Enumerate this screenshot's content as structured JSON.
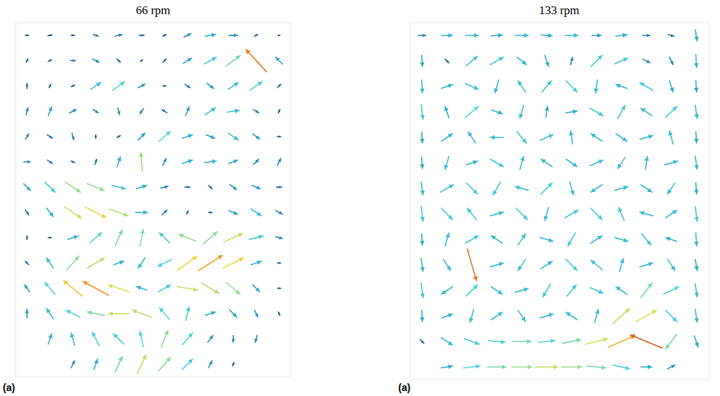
{
  "chart_data": [
    {
      "type": "quiver",
      "title": "66 rpm",
      "panel_label": "(a)",
      "tick_labels": false,
      "grid": false,
      "x": [
        0,
        1,
        2,
        3,
        4,
        5,
        6,
        7,
        8,
        9,
        10,
        11
      ],
      "y": [
        0,
        1,
        2,
        3,
        4,
        5,
        6,
        7,
        8,
        9,
        10,
        11,
        12,
        13
      ],
      "xlim": [
        -0.5,
        11.5
      ],
      "ylim": [
        -0.5,
        13.5
      ],
      "color_range": [
        0,
        1
      ],
      "u": [
        [
          0.1,
          0.12,
          0.1,
          0.15,
          0.2,
          0.15,
          0.1,
          0.2,
          0.3,
          0.25,
          0.1,
          0.05
        ],
        [
          0.05,
          0.1,
          0.15,
          0.2,
          0.1,
          0.05,
          0.1,
          0.25,
          0.35,
          0.4,
          -0.6,
          -0.2
        ],
        [
          0,
          0.05,
          0.1,
          0.3,
          0.35,
          0.2,
          0.1,
          0.15,
          0.2,
          0.3,
          0.35,
          0.1
        ],
        [
          0.05,
          0.1,
          0.2,
          0.15,
          0.05,
          -0.1,
          -0.15,
          0.1,
          0.3,
          0.35,
          0.15,
          0.05
        ],
        [
          0.1,
          0.15,
          0.05,
          0,
          0.1,
          0.2,
          0.35,
          0.3,
          0.25,
          0.3,
          0.2,
          0.1
        ],
        [
          0.2,
          0.15,
          0.1,
          0.05,
          0.1,
          -0.05,
          0.1,
          0.3,
          0.35,
          0.25,
          0.15,
          0.1
        ],
        [
          0.2,
          0.3,
          0.45,
          0.5,
          0.4,
          0.3,
          0.2,
          0.15,
          0.1,
          0.2,
          0.25,
          0.15
        ],
        [
          0.1,
          0.2,
          0.5,
          0.6,
          0.55,
          0.35,
          0.15,
          0.05,
          0.1,
          0.25,
          0.3,
          0.2
        ],
        [
          0,
          0.1,
          0.3,
          0.35,
          0.2,
          0.1,
          -0.3,
          -0.5,
          0.4,
          0.55,
          0.4,
          0.2
        ],
        [
          -0.1,
          -0.2,
          0.35,
          0.5,
          0.3,
          -0.2,
          -0.4,
          0.55,
          0.7,
          0.6,
          0.3,
          0.1
        ],
        [
          -0.15,
          -0.3,
          -0.55,
          -0.75,
          -0.6,
          -0.3,
          0.35,
          0.6,
          0.5,
          0.4,
          0.2,
          0.1
        ],
        [
          0,
          -0.2,
          -0.4,
          -0.5,
          -0.6,
          -0.55,
          -0.3,
          0.1,
          0.3,
          0.2,
          0.1,
          0.05
        ],
        [
          null,
          0.1,
          -0.1,
          -0.2,
          -0.3,
          -0.1,
          0.2,
          0.3,
          0.15,
          0,
          -0.05,
          null
        ],
        [
          null,
          null,
          0.1,
          0.1,
          0.2,
          0.25,
          0.35,
          0.3,
          0.1,
          0.05,
          null,
          null
        ]
      ],
      "v": [
        [
          0,
          0.02,
          0,
          -0.05,
          0.05,
          0,
          0.05,
          0.1,
          0.05,
          0,
          0.05,
          0
        ],
        [
          0.1,
          0.05,
          0,
          -0.1,
          -0.1,
          0.05,
          0.1,
          0.15,
          0.2,
          0.3,
          0.65,
          0.2
        ],
        [
          0.15,
          0.1,
          0.05,
          0.2,
          0.25,
          0.1,
          0,
          -0.1,
          -0.15,
          0.2,
          0.25,
          0.1
        ],
        [
          0.2,
          0.25,
          0.1,
          -0.1,
          -0.2,
          -0.15,
          0.1,
          0.25,
          0.2,
          0.05,
          -0.1,
          0.1
        ],
        [
          0.15,
          -0.1,
          -0.2,
          -0.1,
          0.05,
          0.2,
          0.3,
          0.1,
          -0.1,
          -0.2,
          -0.15,
          0
        ],
        [
          0,
          -0.1,
          -0.05,
          0.15,
          0.3,
          0.55,
          0.2,
          0.1,
          0.05,
          0.1,
          0.15,
          0.2
        ],
        [
          -0.2,
          -0.3,
          -0.3,
          -0.2,
          -0.1,
          0.1,
          0.05,
          0,
          -0.1,
          -0.15,
          -0.1,
          0
        ],
        [
          -0.15,
          -0.25,
          -0.35,
          -0.3,
          -0.2,
          0,
          0.15,
          0.1,
          0,
          -0.1,
          -0.2,
          -0.1
        ],
        [
          -0.1,
          0,
          0.1,
          0.3,
          0.45,
          0.5,
          0.3,
          0.2,
          0.35,
          0.25,
          0.1,
          -0.05
        ],
        [
          0.1,
          0.3,
          0.4,
          0.3,
          0.1,
          -0.3,
          -0.2,
          0.4,
          0.45,
          0.3,
          0.1,
          0
        ],
        [
          0.2,
          0.35,
          0.45,
          0.4,
          0.2,
          0.1,
          0.2,
          -0.1,
          -0.3,
          -0.35,
          -0.2,
          0
        ],
        [
          0.25,
          0.3,
          0.2,
          0.1,
          0,
          0.2,
          0.35,
          0.4,
          0.1,
          -0.2,
          -0.2,
          -0.1
        ],
        [
          null,
          0.3,
          0.35,
          0.4,
          0.3,
          0.45,
          0.5,
          0.35,
          0.2,
          -0.2,
          -0.2,
          null
        ],
        [
          null,
          null,
          0.2,
          0.3,
          0.45,
          0.55,
          0.4,
          0.3,
          0.2,
          0.1,
          null,
          null
        ]
      ]
    },
    {
      "type": "quiver",
      "title": "133 rpm",
      "panel_label": "(a)",
      "tick_labels": false,
      "grid": false,
      "x": [
        0,
        1,
        2,
        3,
        4,
        5,
        6,
        7,
        8,
        9,
        10,
        11
      ],
      "y": [
        0,
        1,
        2,
        3,
        4,
        5,
        6,
        7,
        8,
        9,
        10,
        11,
        12,
        13
      ],
      "xlim": [
        -0.5,
        11.5
      ],
      "ylim": [
        -0.5,
        13.5
      ],
      "color_range": [
        0,
        1
      ],
      "u": [
        [
          0.2,
          0.3,
          0.35,
          0.3,
          0.35,
          0.3,
          0.35,
          0.25,
          0.3,
          0.2,
          0.15,
          0.05
        ],
        [
          0.02,
          0.1,
          0.3,
          0.35,
          0.25,
          0.1,
          0.05,
          0.3,
          0.35,
          0.2,
          0.1,
          0.02
        ],
        [
          0.02,
          0.3,
          0.35,
          -0.1,
          -0.2,
          0.25,
          0.3,
          -0.05,
          -0.3,
          -0.35,
          0.1,
          0.02
        ],
        [
          0.05,
          -0.1,
          0.35,
          0.3,
          -0.1,
          0.05,
          0.3,
          0.35,
          0.2,
          -0.3,
          0.3,
          0.05
        ],
        [
          0.02,
          0.3,
          -0.2,
          -0.35,
          0.25,
          0.35,
          -0.05,
          -0.3,
          0.3,
          0.35,
          -0.1,
          0.02
        ],
        [
          0.02,
          -0.1,
          0.3,
          0.35,
          0.1,
          -0.3,
          0.3,
          0.35,
          -0.2,
          0.05,
          0.35,
          0.05
        ],
        [
          0.05,
          0.35,
          0.3,
          -0.2,
          -0.35,
          0.3,
          0.1,
          -0.3,
          0.35,
          0.3,
          -0.2,
          0.02
        ],
        [
          0.05,
          0.3,
          -0.25,
          0.35,
          0.3,
          -0.1,
          0.35,
          0.3,
          -0.15,
          -0.35,
          0.3,
          0.05
        ],
        [
          0.02,
          0.1,
          0.35,
          -0.3,
          0.2,
          0.35,
          -0.2,
          0.3,
          0.35,
          0.25,
          -0.3,
          0.02
        ],
        [
          0.05,
          0.2,
          0.25,
          0.35,
          -0.2,
          0.3,
          0.3,
          -0.3,
          0.1,
          0.35,
          0.2,
          0.05
        ],
        [
          0.05,
          -0.3,
          0.3,
          0.3,
          0.35,
          -0.2,
          0.25,
          0.35,
          -0.3,
          0.3,
          0.4,
          0.05
        ],
        [
          0.02,
          0.3,
          -0.1,
          0.3,
          0.2,
          0.35,
          -0.3,
          0.1,
          0.45,
          0.55,
          0.3,
          0.05
        ],
        [
          0.1,
          0.3,
          0.4,
          0.45,
          0.5,
          0.45,
          0.5,
          0.6,
          0.7,
          -0.85,
          -0.3,
          0.1
        ],
        [
          null,
          0.3,
          0.45,
          0.5,
          0.55,
          0.6,
          0.55,
          0.5,
          0.45,
          0.3,
          0.2,
          null
        ]
      ],
      "v": [
        [
          0,
          0,
          0,
          0.02,
          0,
          -0.02,
          0,
          0,
          0.05,
          0,
          -0.05,
          -0.3
        ],
        [
          -0.3,
          -0.1,
          0.25,
          0.2,
          -0.2,
          -0.3,
          0.2,
          0.3,
          0.15,
          -0.1,
          -0.2,
          -0.35
        ],
        [
          -0.35,
          0.1,
          -0.15,
          -0.35,
          0.3,
          0.3,
          -0.3,
          -0.35,
          0.1,
          0.2,
          -0.3,
          -0.3
        ],
        [
          -0.4,
          0.3,
          0.3,
          -0.1,
          -0.35,
          0.3,
          0.05,
          -0.2,
          0.35,
          0.2,
          0.3,
          -0.35
        ],
        [
          -0.3,
          0.2,
          0.3,
          0,
          -0.3,
          0.15,
          0.35,
          0.2,
          -0.2,
          0.1,
          0.35,
          -0.3
        ],
        [
          -0.3,
          -0.35,
          0.1,
          -0.2,
          0.35,
          0.2,
          -0.2,
          0.15,
          -0.3,
          0.35,
          0.1,
          -0.35
        ],
        [
          -0.35,
          0.2,
          -0.3,
          -0.35,
          0.1,
          0.3,
          -0.35,
          -0.2,
          0.1,
          -0.2,
          -0.3,
          -0.3
        ],
        [
          -0.4,
          -0.3,
          0.3,
          0.1,
          -0.3,
          -0.35,
          0.2,
          -0.3,
          0.35,
          0.1,
          0.2,
          -0.4
        ],
        [
          -0.3,
          0.35,
          0.2,
          0.2,
          0.3,
          -0.1,
          -0.35,
          0.2,
          -0.1,
          -0.3,
          0.1,
          -0.35
        ],
        [
          -0.35,
          -0.3,
          -0.85,
          0.1,
          -0.3,
          0.2,
          -0.3,
          0.25,
          0.35,
          0.1,
          -0.3,
          -0.3
        ],
        [
          -0.4,
          -0.2,
          0.3,
          -0.2,
          0.1,
          -0.35,
          0.3,
          -0.15,
          0.2,
          0.4,
          0.2,
          -0.35
        ],
        [
          -0.3,
          0.1,
          -0.35,
          0.2,
          -0.3,
          0.1,
          0.2,
          0.35,
          0.4,
          0.3,
          -0.3,
          -0.35
        ],
        [
          -0.1,
          -0.2,
          -0.15,
          -0.05,
          0,
          0.05,
          0.1,
          0.15,
          0.3,
          0.35,
          -0.4,
          -0.3
        ],
        [
          null,
          0.05,
          0.05,
          0,
          0,
          0,
          0,
          -0.05,
          -0.1,
          0,
          0.1,
          null
        ]
      ]
    }
  ]
}
